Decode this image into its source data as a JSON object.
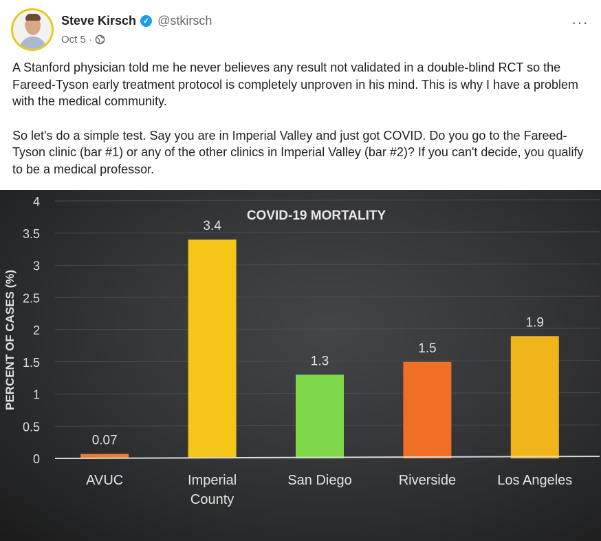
{
  "author": {
    "name": "Steve Kirsch",
    "handle": "@stkirsch",
    "verified_icon": "verified-badge-icon",
    "avatar": "avatar-photo"
  },
  "meta": {
    "date": "Oct 5",
    "separator": "·",
    "audience_icon": "globe-icon"
  },
  "more_label": "···",
  "body": {
    "paragraph1": "A Stanford physician told me he never believes any result not validated in a double-blind RCT so the Fareed-Tyson early treatment protocol is completely unproven in his mind. This is why I have a problem with the medical community.",
    "paragraph2": "So let's do a simple test. Say you are in Imperial Valley and just got COVID. Do you go to the Fareed-Tyson clinic (bar #1) or any of the other clinics in Imperial Valley (bar #2)? If you can't decide, you qualify to be a medical professor."
  },
  "chart_data": {
    "type": "bar",
    "title": "COVID-19 MORTALITY",
    "ylabel": "PERCENT OF CASES (%)",
    "xlabel": "",
    "ylim": [
      0,
      4
    ],
    "yticks": [
      "0",
      "0.5",
      "1",
      "1.5",
      "2",
      "2.5",
      "3",
      "3.5",
      "4"
    ],
    "categories": [
      "AVUC",
      "Imperial County",
      "San Diego",
      "Riverside",
      "Los Angeles"
    ],
    "category_lines": [
      [
        "AVUC"
      ],
      [
        "Imperial",
        "County"
      ],
      [
        "San Diego"
      ],
      [
        "Riverside"
      ],
      [
        "Los Angeles"
      ]
    ],
    "values": [
      0.07,
      3.4,
      1.3,
      1.5,
      1.9
    ],
    "value_labels": [
      "0.07",
      "3.4",
      "1.3",
      "1.5",
      "1.9"
    ],
    "colors": [
      "#ea7f32",
      "#f5c518",
      "#7fd84a",
      "#ef6f24",
      "#f1b51c"
    ],
    "grid": true,
    "background": "#333436",
    "text_color": "#e4e4e4"
  }
}
